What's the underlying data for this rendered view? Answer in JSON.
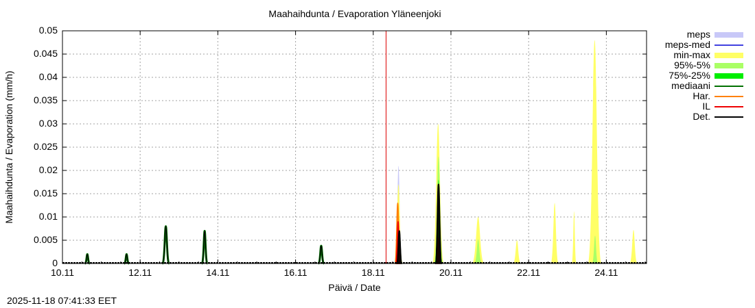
{
  "title": "Maahaihdunta / Evaporation  Yläneenjoki",
  "timestamp": "2025-11-18 07:41:33 EET",
  "chart_data": {
    "type": "area",
    "title": "Maahaihdunta / Evaporation  Yläneenjoki",
    "xlabel": "Päivä / Date",
    "ylabel": "Maahaihdunta / Evaporation (mm/h)",
    "ylim": [
      0,
      0.05
    ],
    "xlim": [
      "10.11",
      "25.05"
    ],
    "grid": true,
    "legend_position": "right",
    "y_ticks": [
      "0",
      "0.005",
      "0.01",
      "0.015",
      "0.02",
      "0.025",
      "0.03",
      "0.035",
      "0.04",
      "0.045",
      "0.05"
    ],
    "x_ticks": [
      "10.11",
      "12.11",
      "14.11",
      "16.11",
      "18.11",
      "20.11",
      "22.11",
      "24.11"
    ],
    "now_marker": {
      "x_day": 18.33,
      "color": "#dd0000"
    },
    "legend": [
      {
        "label": "meps",
        "color": "#c8c8f8",
        "kind": "band"
      },
      {
        "label": "meps-med",
        "color": "#4040e0",
        "kind": "line"
      },
      {
        "label": "min-max",
        "color": "#ffff66",
        "kind": "band"
      },
      {
        "label": "95%-5%",
        "color": "#aaff66",
        "kind": "band"
      },
      {
        "label": "75%-25%",
        "color": "#00ee00",
        "kind": "band"
      },
      {
        "label": "mediaani",
        "color": "#007000",
        "kind": "line"
      },
      {
        "label": "Har.",
        "color": "#ff8000",
        "kind": "line"
      },
      {
        "label": "IL",
        "color": "#ee0000",
        "kind": "line"
      },
      {
        "label": "Det.",
        "color": "#000000",
        "kind": "line"
      }
    ],
    "series": [
      {
        "name": "Det. (observed)",
        "color": "#000000",
        "peaks": [
          {
            "day": 10.64,
            "value": 0.002,
            "width": 0.12
          },
          {
            "day": 11.65,
            "value": 0.002,
            "width": 0.12
          },
          {
            "day": 12.66,
            "value": 0.008,
            "width": 0.17
          },
          {
            "day": 13.66,
            "value": 0.007,
            "width": 0.14
          },
          {
            "day": 16.66,
            "value": 0.0038,
            "width": 0.14
          },
          {
            "day": 18.67,
            "value": 0.007,
            "width": 0.14
          },
          {
            "day": 19.68,
            "value": 0.017,
            "width": 0.17
          }
        ]
      },
      {
        "name": "meps",
        "color": "#c8c8f8",
        "peaks": [
          {
            "day": 18.65,
            "value": 0.021,
            "width": 0.18
          }
        ]
      },
      {
        "name": "min-max",
        "color": "#ffff66",
        "peaks": [
          {
            "day": 18.65,
            "value": 0.017,
            "width": 0.22
          },
          {
            "day": 19.67,
            "value": 0.03,
            "width": 0.3
          },
          {
            "day": 20.7,
            "value": 0.01,
            "width": 0.32
          },
          {
            "day": 21.7,
            "value": 0.005,
            "width": 0.2
          },
          {
            "day": 22.67,
            "value": 0.013,
            "width": 0.2
          },
          {
            "day": 23.17,
            "value": 0.0112,
            "width": 0.12
          },
          {
            "day": 23.7,
            "value": 0.048,
            "width": 0.35
          },
          {
            "day": 24.7,
            "value": 0.0072,
            "width": 0.2
          }
        ]
      },
      {
        "name": "95%-5%",
        "color": "#aaff66",
        "peaks": [
          {
            "day": 19.68,
            "value": 0.023,
            "width": 0.24
          },
          {
            "day": 20.7,
            "value": 0.0052,
            "width": 0.2
          },
          {
            "day": 23.71,
            "value": 0.006,
            "width": 0.16
          }
        ]
      },
      {
        "name": "75%-25%",
        "color": "#00ee00",
        "peaks": [
          {
            "day": 19.68,
            "value": 0.018,
            "width": 0.2
          }
        ]
      },
      {
        "name": "Har.",
        "color": "#ff8000",
        "peaks": [
          {
            "day": 18.63,
            "value": 0.013,
            "width": 0.16
          }
        ]
      },
      {
        "name": "IL",
        "color": "#ee0000",
        "peaks": [
          {
            "day": 18.64,
            "value": 0.009,
            "width": 0.14
          },
          {
            "day": 19.67,
            "value": 0.0055,
            "width": 0.14
          }
        ]
      }
    ]
  }
}
